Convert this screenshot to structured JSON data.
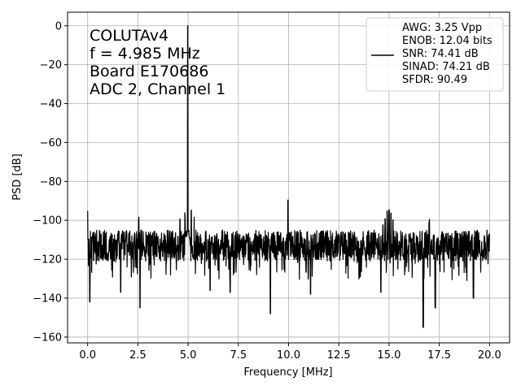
{
  "chart_data": {
    "type": "line",
    "xlabel": "Frequency [MHz]",
    "ylabel": "PSD [dB]",
    "xlim": [
      -1.0,
      21.0
    ],
    "ylim": [
      -163,
      7
    ],
    "xticks": [
      0.0,
      2.5,
      5.0,
      7.5,
      10.0,
      12.5,
      15.0,
      17.5,
      20.0
    ],
    "xtick_labels": [
      "0.0",
      "2.5",
      "5.0",
      "7.5",
      "10.0",
      "12.5",
      "15.0",
      "17.5",
      "20.0"
    ],
    "yticks": [
      0,
      -20,
      -40,
      -60,
      -80,
      -100,
      -120,
      -140,
      -160
    ],
    "ytick_labels": [
      "0",
      "−20",
      "−40",
      "−60",
      "−80",
      "−100",
      "−120",
      "−140",
      "−160"
    ],
    "grid": true,
    "line_color": "#000000",
    "annotation_lines": [
      "COLUTAv4",
      "f = 4.985 MHz",
      "Board E170686",
      "ADC 2, Channel 1"
    ],
    "legend_position": "top-right",
    "legend_lines": [
      "AWG: 3.25 Vpp",
      "ENOB: 12.04 bits",
      "SNR: 74.41 dB",
      "SINAD: 74.21 dB",
      "SFDR: 90.49"
    ],
    "series": [
      {
        "noise_floor_db": -113,
        "noise_spread_db": 8,
        "fundamental": {
          "freq": 4.985,
          "db": 0
        },
        "peaks": [
          {
            "freq": 0.0,
            "db": -97
          },
          {
            "freq": 2.55,
            "db": -100
          },
          {
            "freq": 4.6,
            "db": -101
          },
          {
            "freq": 4.85,
            "db": -98
          },
          {
            "freq": 5.15,
            "db": -95
          },
          {
            "freq": 5.3,
            "db": -99
          },
          {
            "freq": 9.97,
            "db": -90
          },
          {
            "freq": 14.7,
            "db": -103
          },
          {
            "freq": 14.8,
            "db": -100
          },
          {
            "freq": 14.9,
            "db": -97
          },
          {
            "freq": 15.0,
            "db": -96
          },
          {
            "freq": 15.1,
            "db": -97
          },
          {
            "freq": 15.2,
            "db": -101
          },
          {
            "freq": 17.0,
            "db": -101
          }
        ],
        "dips": [
          {
            "freq": 0.1,
            "db": -142
          },
          {
            "freq": 1.65,
            "db": -137
          },
          {
            "freq": 2.6,
            "db": -145
          },
          {
            "freq": 6.1,
            "db": -136
          },
          {
            "freq": 7.1,
            "db": -137
          },
          {
            "freq": 9.1,
            "db": -148
          },
          {
            "freq": 11.1,
            "db": -138
          },
          {
            "freq": 14.6,
            "db": -137
          },
          {
            "freq": 16.7,
            "db": -155
          },
          {
            "freq": 17.3,
            "db": -145
          },
          {
            "freq": 19.2,
            "db": -140
          }
        ]
      }
    ]
  }
}
